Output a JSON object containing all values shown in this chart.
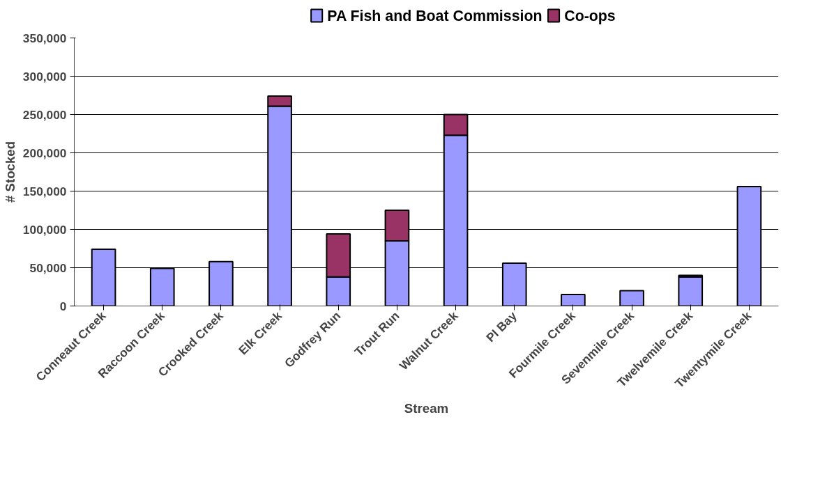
{
  "chart_data": {
    "type": "bar",
    "stacked": true,
    "xlabel": "Stream",
    "ylabel": "# Stocked",
    "categories": [
      "Conneaut Creek",
      "Raccoon Creek",
      "Crooked Creek",
      "Elk Creek",
      "Godfrey Run",
      "Trout Run",
      "Walnut Creek",
      "PI Bay",
      "Fourmile Creek",
      "Sevenmile Creek",
      "Twelvemile Creek",
      "Twentymile Creek"
    ],
    "series": [
      {
        "name": "PA Fish and Boat Commission",
        "color": "#9999ff",
        "values": [
          74000,
          49000,
          58000,
          261000,
          38000,
          85000,
          223000,
          56000,
          15000,
          20000,
          38000,
          156000
        ]
      },
      {
        "name": "Co-ops",
        "color": "#993366",
        "values": [
          null,
          null,
          null,
          13000,
          56000,
          40000,
          27000,
          null,
          null,
          null,
          2000,
          null
        ]
      }
    ],
    "ylim": [
      0,
      350000
    ],
    "yticks": [
      {
        "value": 0,
        "label": "0"
      },
      {
        "value": 50000,
        "label": "50,000"
      },
      {
        "value": 100000,
        "label": "100,000"
      },
      {
        "value": 150000,
        "label": "150,000"
      },
      {
        "value": 200000,
        "label": "200,000"
      },
      {
        "value": 250000,
        "label": "250,000"
      },
      {
        "value": 300000,
        "label": "300,000"
      },
      {
        "value": 350000,
        "label": "350,000"
      }
    ],
    "grid": "y",
    "legend": "top"
  }
}
